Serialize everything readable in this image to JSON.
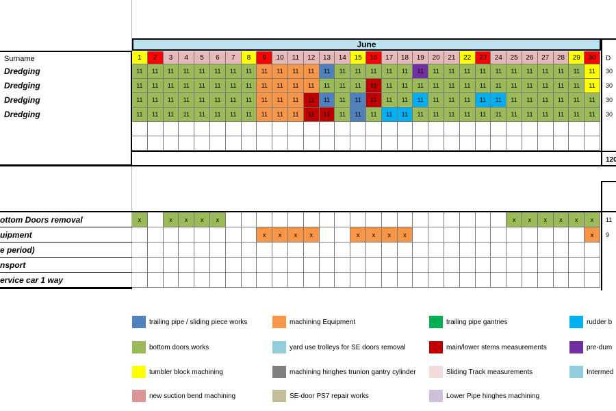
{
  "month": "June",
  "surname_header": "Surname",
  "days": [
    "1",
    "2",
    "3",
    "4",
    "5",
    "6",
    "7",
    "8",
    "9",
    "10",
    "11",
    "12",
    "13",
    "14",
    "15",
    "16",
    "17",
    "18",
    "19",
    "20",
    "21",
    "22",
    "23",
    "24",
    "25",
    "26",
    "27",
    "28",
    "29",
    "30"
  ],
  "day_colors": [
    "yellow",
    "red",
    "pink",
    "pink",
    "pink",
    "pink",
    "pink",
    "yellow",
    "red",
    "pink",
    "pink",
    "pink",
    "pink",
    "pink",
    "yellow",
    "red",
    "pink",
    "pink",
    "pink",
    "pink",
    "pink",
    "yellow",
    "red",
    "pink",
    "pink",
    "pink",
    "pink",
    "pink",
    "yellow",
    "red"
  ],
  "cell_value": "11",
  "rows": [
    {
      "label": "Dredging",
      "total": "30",
      "cells": [
        "g",
        "g",
        "g",
        "g",
        "g",
        "g",
        "g",
        "g",
        "o",
        "o",
        "o",
        "o",
        "b",
        "g",
        "g",
        "g",
        "g",
        "g",
        "v",
        "g",
        "g",
        "g",
        "g",
        "g",
        "g",
        "g",
        "g",
        "g",
        "g",
        "y"
      ]
    },
    {
      "label": "Dredging",
      "total": "30",
      "cells": [
        "g",
        "g",
        "g",
        "g",
        "g",
        "g",
        "g",
        "g",
        "o",
        "o",
        "o",
        "o",
        "g",
        "g",
        "g",
        "r",
        "g",
        "g",
        "g",
        "g",
        "g",
        "g",
        "g",
        "g",
        "g",
        "g",
        "g",
        "g",
        "g",
        "y"
      ]
    },
    {
      "label": "Dredging",
      "total": "30",
      "cells": [
        "g",
        "g",
        "g",
        "g",
        "g",
        "g",
        "g",
        "g",
        "o",
        "o",
        "o",
        "r",
        "b",
        "g",
        "b",
        "r",
        "g",
        "g",
        "c",
        "g",
        "g",
        "g",
        "c",
        "c",
        "g",
        "g",
        "g",
        "g",
        "g",
        "g"
      ]
    },
    {
      "label": "Dredging",
      "total": "30",
      "cells": [
        "g",
        "g",
        "g",
        "g",
        "g",
        "g",
        "g",
        "g",
        "o",
        "o",
        "o",
        "r",
        "r",
        "g",
        "b",
        "g",
        "c",
        "c",
        "g",
        "g",
        "g",
        "g",
        "g",
        "g",
        "g",
        "g",
        "g",
        "g",
        "g",
        "g"
      ]
    }
  ],
  "grand_total": "120",
  "right_header": "D",
  "mark": "x",
  "lower_rows": [
    {
      "label": "ottom Doors removal",
      "total": "11",
      "marks": [
        "g",
        "",
        "g",
        "g",
        "g",
        "g",
        "",
        "",
        "",
        "",
        "",
        "",
        "",
        "",
        "",
        "",
        "",
        "",
        "",
        "",
        "",
        "",
        "",
        "",
        "g",
        "g",
        "g",
        "g",
        "g",
        "g"
      ]
    },
    {
      "label": "uipment",
      "total": "9",
      "marks": [
        "",
        "",
        "",
        "",
        "",
        "",
        "",
        "",
        "o",
        "o",
        "o",
        "o",
        "",
        "",
        "o",
        "o",
        "o",
        "o",
        "",
        "",
        "",
        "",
        "",
        "",
        "",
        "",
        "",
        "",
        "",
        "o"
      ]
    },
    {
      "label": "e period)",
      "total": "",
      "marks": []
    },
    {
      "label": "nsport",
      "total": "",
      "marks": []
    },
    {
      "label": "ervice car 1 way",
      "total": "",
      "marks": []
    }
  ],
  "legend": [
    {
      "label": "trailing pipe / sliding piece works",
      "color": "#4f81bd"
    },
    {
      "label": "machining Equipment",
      "color": "#f79646"
    },
    {
      "label": "trailing pipe gantries",
      "color": "#00b050"
    },
    {
      "label": "rudder b",
      "color": "#00b0f0"
    },
    {
      "label": "bottom doors works",
      "color": "#9bbb59"
    },
    {
      "label": "yard use trolleys for SE doors removal",
      "color": "#92cddc"
    },
    {
      "label": "main/lower stems measurements",
      "color": "#c00000"
    },
    {
      "label": "pre-dum",
      "color": "#7030a0"
    },
    {
      "label": "tumbler block machining",
      "color": "#ffff00"
    },
    {
      "label": "machining hinghes trunion gantry cylinder",
      "color": "#7f7f7f"
    },
    {
      "label": "Sliding Track measurements",
      "color": "#f2dcdb"
    },
    {
      "label": "Intermed",
      "color": "#92cddc"
    },
    {
      "label": "new suction bend machining",
      "color": "#da9694"
    },
    {
      "label": "SE-door PS7 repair works",
      "color": "#c4bd97"
    },
    {
      "label": "Lower Pipe hinghes machining",
      "color": "#ccc0da"
    }
  ],
  "colors": {
    "g": "#9bbb59",
    "o": "#f79646",
    "b": "#4f81bd",
    "r": "#c00000",
    "v": "#7030a0",
    "y": "#ffff00",
    "c": "#00b0f0",
    "dg": "#00b050",
    "yellow": "#ffff00",
    "red": "#ff0000",
    "pink": "#e6b8b7"
  }
}
